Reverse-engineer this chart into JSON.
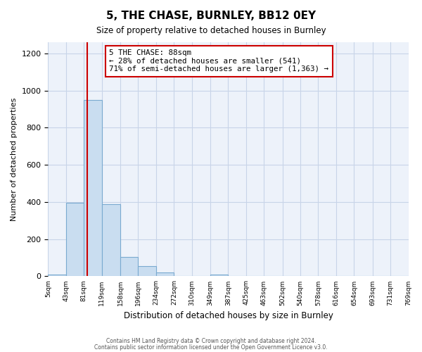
{
  "title": "5, THE CHASE, BURNLEY, BB12 0EY",
  "subtitle": "Size of property relative to detached houses in Burnley",
  "xlabel": "Distribution of detached houses by size in Burnley",
  "ylabel": "Number of detached properties",
  "bar_color": "#c9ddf0",
  "bar_edge_color": "#7aaad0",
  "background_color": "#ffffff",
  "axes_bg_color": "#edf2fa",
  "grid_color": "#c8d4e8",
  "property_line_color": "#cc0000",
  "property_size": 88,
  "annotation_title": "5 THE CHASE: 88sqm",
  "annotation_line1": "← 28% of detached houses are smaller (541)",
  "annotation_line2": "71% of semi-detached houses are larger (1,363) →",
  "annotation_box_color": "#ffffff",
  "annotation_border_color": "#cc0000",
  "bin_edges": [
    5,
    43,
    81,
    119,
    158,
    196,
    234,
    272,
    310,
    349,
    387,
    425,
    463,
    502,
    540,
    578,
    616,
    654,
    693,
    731,
    769
  ],
  "bin_counts": [
    8,
    395,
    950,
    390,
    105,
    55,
    22,
    0,
    0,
    10,
    0,
    0,
    0,
    0,
    0,
    0,
    0,
    0,
    0,
    0
  ],
  "ylim": [
    0,
    1260
  ],
  "yticks": [
    0,
    200,
    400,
    600,
    800,
    1000,
    1200
  ],
  "footer_line1": "Contains HM Land Registry data © Crown copyright and database right 2024.",
  "footer_line2": "Contains public sector information licensed under the Open Government Licence v3.0."
}
